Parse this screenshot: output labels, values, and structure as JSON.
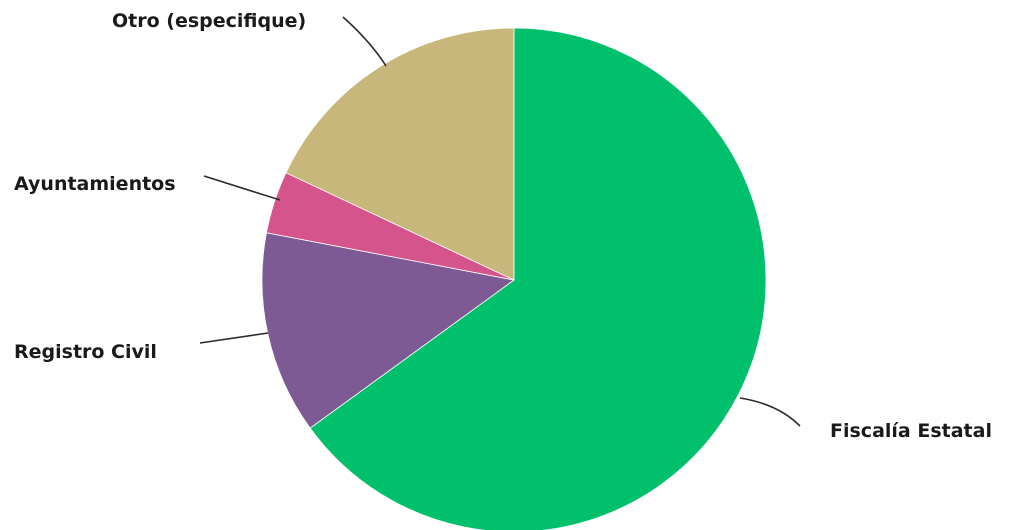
{
  "chart_data": {
    "type": "pie",
    "start_angle_deg": 0,
    "direction": "clockwise",
    "slices": [
      {
        "label": "Fiscalía Estatal",
        "value": 65,
        "color": "#00c06b"
      },
      {
        "label": "Registro Civil",
        "value": 13,
        "color": "#7d5a94"
      },
      {
        "label": "Ayuntamientos",
        "value": 4,
        "color": "#d6548c"
      },
      {
        "label": "Otro (especifique)",
        "value": 18,
        "color": "#c7b77b"
      }
    ]
  }
}
